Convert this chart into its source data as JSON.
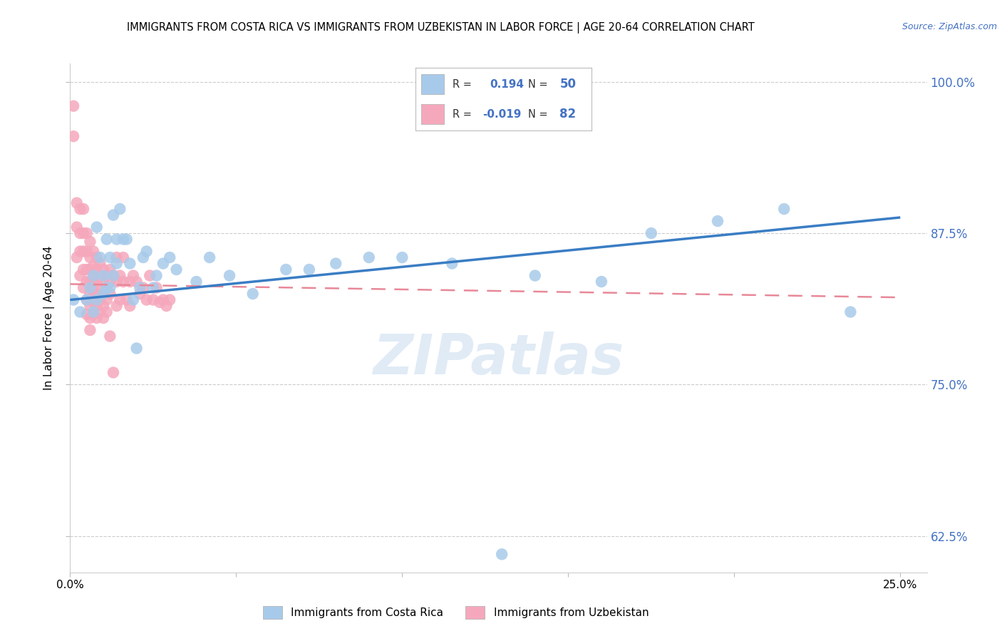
{
  "title": "IMMIGRANTS FROM COSTA RICA VS IMMIGRANTS FROM UZBEKISTAN IN LABOR FORCE | AGE 20-64 CORRELATION CHART",
  "source": "Source: ZipAtlas.com",
  "ylabel_label": "In Labor Force | Age 20-64",
  "ylabel_ticks": [
    "62.5%",
    "75.0%",
    "87.5%",
    "100.0%"
  ],
  "ytick_vals": [
    0.625,
    0.75,
    0.875,
    1.0
  ],
  "xtick_vals": [
    0.0,
    0.05,
    0.1,
    0.15,
    0.2,
    0.25
  ],
  "xtick_labels": [
    "0.0%",
    "",
    "",
    "",
    "",
    "25.0%"
  ],
  "xlim": [
    0.0,
    0.258
  ],
  "ylim": [
    0.595,
    1.015
  ],
  "blue_line_x": [
    0.0,
    0.25
  ],
  "blue_line_y": [
    0.82,
    0.888
  ],
  "pink_line_x": [
    0.0,
    0.25
  ],
  "pink_line_y": [
    0.833,
    0.822
  ],
  "blue_scatter_color": "#A8CAEA",
  "pink_scatter_color": "#F5A8BC",
  "blue_line_color": "#3A7DC4",
  "pink_line_color": "#E88898",
  "blue_label": "Immigrants from Costa Rica",
  "pink_label": "Immigrants from Uzbekistan",
  "watermark": "ZIPatlas",
  "costa_rica_x": [
    0.001,
    0.003,
    0.005,
    0.006,
    0.007,
    0.007,
    0.008,
    0.008,
    0.009,
    0.01,
    0.01,
    0.011,
    0.011,
    0.012,
    0.012,
    0.013,
    0.013,
    0.014,
    0.014,
    0.015,
    0.016,
    0.017,
    0.018,
    0.019,
    0.02,
    0.021,
    0.022,
    0.023,
    0.025,
    0.026,
    0.028,
    0.03,
    0.032,
    0.038,
    0.042,
    0.048,
    0.055,
    0.065,
    0.072,
    0.08,
    0.09,
    0.1,
    0.115,
    0.13,
    0.14,
    0.16,
    0.175,
    0.195,
    0.215,
    0.235
  ],
  "costa_rica_y": [
    0.82,
    0.81,
    0.82,
    0.83,
    0.84,
    0.81,
    0.88,
    0.82,
    0.855,
    0.84,
    0.825,
    0.87,
    0.83,
    0.855,
    0.83,
    0.89,
    0.84,
    0.87,
    0.85,
    0.895,
    0.87,
    0.87,
    0.85,
    0.82,
    0.78,
    0.83,
    0.855,
    0.86,
    0.83,
    0.84,
    0.85,
    0.855,
    0.845,
    0.835,
    0.855,
    0.84,
    0.825,
    0.845,
    0.845,
    0.85,
    0.855,
    0.855,
    0.85,
    0.61,
    0.84,
    0.835,
    0.875,
    0.885,
    0.895,
    0.81
  ],
  "uzbekistan_x": [
    0.001,
    0.001,
    0.002,
    0.002,
    0.002,
    0.003,
    0.003,
    0.003,
    0.003,
    0.004,
    0.004,
    0.004,
    0.004,
    0.004,
    0.005,
    0.005,
    0.005,
    0.005,
    0.005,
    0.005,
    0.006,
    0.006,
    0.006,
    0.006,
    0.006,
    0.006,
    0.006,
    0.006,
    0.007,
    0.007,
    0.007,
    0.007,
    0.007,
    0.007,
    0.008,
    0.008,
    0.008,
    0.008,
    0.008,
    0.008,
    0.009,
    0.009,
    0.009,
    0.009,
    0.009,
    0.01,
    0.01,
    0.01,
    0.01,
    0.01,
    0.011,
    0.011,
    0.011,
    0.011,
    0.012,
    0.012,
    0.012,
    0.012,
    0.013,
    0.013,
    0.014,
    0.014,
    0.014,
    0.015,
    0.015,
    0.016,
    0.016,
    0.017,
    0.018,
    0.018,
    0.019,
    0.02,
    0.021,
    0.022,
    0.023,
    0.024,
    0.025,
    0.026,
    0.027,
    0.028,
    0.029,
    0.03
  ],
  "uzbekistan_y": [
    0.98,
    0.955,
    0.9,
    0.88,
    0.855,
    0.895,
    0.875,
    0.86,
    0.84,
    0.895,
    0.875,
    0.86,
    0.845,
    0.83,
    0.875,
    0.86,
    0.845,
    0.835,
    0.82,
    0.808,
    0.868,
    0.855,
    0.845,
    0.835,
    0.825,
    0.815,
    0.805,
    0.795,
    0.86,
    0.848,
    0.838,
    0.828,
    0.818,
    0.808,
    0.855,
    0.845,
    0.835,
    0.825,
    0.815,
    0.805,
    0.85,
    0.84,
    0.83,
    0.82,
    0.81,
    0.845,
    0.835,
    0.825,
    0.815,
    0.805,
    0.84,
    0.83,
    0.82,
    0.81,
    0.845,
    0.835,
    0.825,
    0.79,
    0.84,
    0.76,
    0.855,
    0.835,
    0.815,
    0.84,
    0.82,
    0.855,
    0.835,
    0.82,
    0.835,
    0.815,
    0.84,
    0.835,
    0.825,
    0.83,
    0.82,
    0.84,
    0.82,
    0.83,
    0.818,
    0.82,
    0.815,
    0.82
  ]
}
